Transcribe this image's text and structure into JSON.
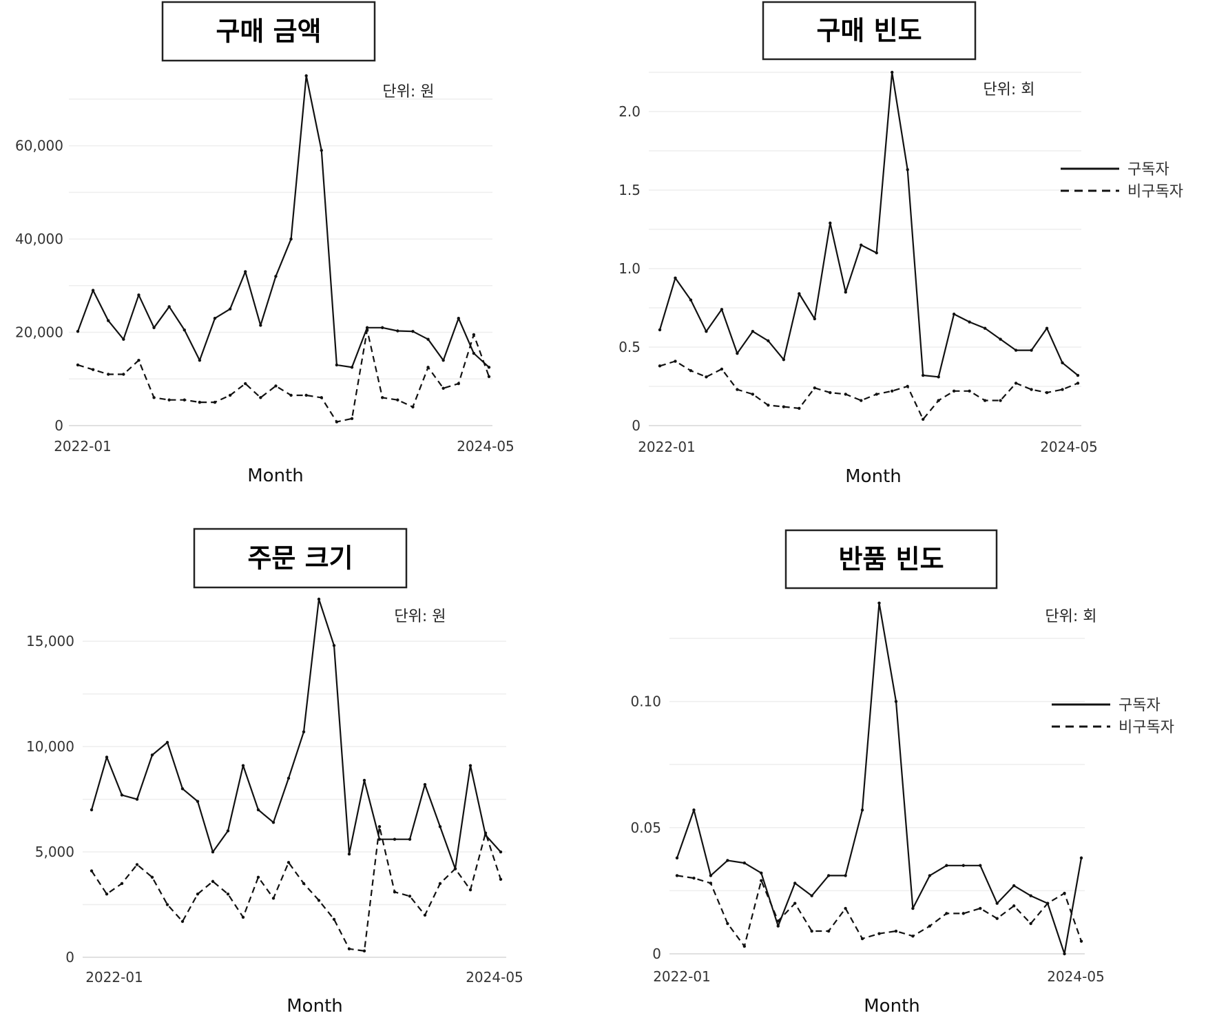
{
  "chart_data": [
    {
      "type": "line",
      "title": "구매 금액",
      "unit_label": "단위: 원",
      "xlabel": "Month",
      "x_tick_labels": [
        "2022-01",
        "2024-05"
      ],
      "ylim": [
        0,
        75000
      ],
      "y_ticks": [
        0,
        20000,
        40000,
        60000
      ],
      "y_tick_labels": [
        "0",
        "20,000",
        "40,000",
        "60,000"
      ],
      "legend": null,
      "series": [
        {
          "name": "구독자",
          "style": "solid",
          "values": [
            20200,
            29000,
            22500,
            18500,
            28000,
            21000,
            25500,
            20500,
            14000,
            23000,
            25000,
            33000,
            21500,
            32000,
            40000,
            75000,
            59000,
            13000,
            12500,
            21000,
            21000,
            20300,
            20200,
            18500,
            14000,
            23000,
            15500,
            12500
          ]
        },
        {
          "name": "비구독자",
          "style": "dashed",
          "values": [
            13000,
            12000,
            11000,
            11000,
            14000,
            6000,
            5500,
            5500,
            5000,
            5000,
            6500,
            9000,
            6000,
            8500,
            6500,
            6500,
            6000,
            800,
            1500,
            20500,
            6000,
            5500,
            4000,
            12500,
            8000,
            9000,
            19500,
            10500
          ]
        }
      ]
    },
    {
      "type": "line",
      "title": "구매 빈도",
      "unit_label": "단위: 회",
      "xlabel": "Month",
      "x_tick_labels": [
        "2022-01",
        "2024-05"
      ],
      "ylim": [
        0,
        2.25
      ],
      "y_ticks": [
        0,
        0.5,
        1.0,
        1.5,
        2.0
      ],
      "y_tick_labels": [
        "0",
        "0.5",
        "1.0",
        "1.5",
        "2.0"
      ],
      "legend": [
        "구독자",
        "비구독자"
      ],
      "series": [
        {
          "name": "구독자",
          "style": "solid",
          "values": [
            0.61,
            0.94,
            0.8,
            0.6,
            0.74,
            0.46,
            0.6,
            0.54,
            0.42,
            0.84,
            0.68,
            1.29,
            0.85,
            1.15,
            1.1,
            2.25,
            1.63,
            0.32,
            0.31,
            0.71,
            0.66,
            0.62,
            0.55,
            0.48,
            0.48,
            0.62,
            0.4,
            0.32
          ]
        },
        {
          "name": "비구독자",
          "style": "dashed",
          "values": [
            0.38,
            0.41,
            0.35,
            0.31,
            0.36,
            0.23,
            0.2,
            0.13,
            0.12,
            0.11,
            0.24,
            0.21,
            0.2,
            0.16,
            0.2,
            0.22,
            0.25,
            0.04,
            0.16,
            0.22,
            0.22,
            0.16,
            0.16,
            0.27,
            0.23,
            0.21,
            0.23,
            0.27
          ]
        }
      ]
    },
    {
      "type": "line",
      "title": "주문 크기",
      "unit_label": "단위: 원",
      "xlabel": "Month",
      "x_tick_labels": [
        "2022-01",
        "2024-05"
      ],
      "ylim": [
        0,
        17000
      ],
      "y_ticks": [
        0,
        5000,
        10000,
        15000
      ],
      "y_tick_labels": [
        "0",
        "5,000",
        "10,000",
        "15,000"
      ],
      "legend": null,
      "series": [
        {
          "name": "구독자",
          "style": "solid",
          "values": [
            7000,
            9500,
            7700,
            7500,
            9600,
            10200,
            8000,
            7400,
            5000,
            6000,
            9100,
            7000,
            6400,
            8500,
            10700,
            17000,
            14800,
            4900,
            8400,
            5600,
            5600,
            5600,
            8200,
            6200,
            4200,
            9100,
            5800,
            5000
          ]
        },
        {
          "name": "비구독자",
          "style": "dashed",
          "values": [
            4100,
            3000,
            3500,
            4400,
            3800,
            2500,
            1700,
            3000,
            3600,
            3000,
            1900,
            3800,
            2800,
            4500,
            3500,
            2700,
            1800,
            400,
            300,
            6200,
            3100,
            2900,
            2000,
            3500,
            4200,
            3200,
            5900,
            3700
          ]
        }
      ]
    },
    {
      "type": "line",
      "title": "반품 빈도",
      "unit_label": "단위: 회",
      "xlabel": "Month",
      "x_tick_labels": [
        "2022-01",
        "2024-05"
      ],
      "ylim": [
        0,
        0.14
      ],
      "y_ticks": [
        0,
        0.05,
        0.1
      ],
      "y_tick_labels": [
        "0",
        "0.05",
        "0.10"
      ],
      "legend": [
        "구독자",
        "비구독자"
      ],
      "series": [
        {
          "name": "구독자",
          "style": "solid",
          "values": [
            0.038,
            0.057,
            0.031,
            0.037,
            0.036,
            0.032,
            0.011,
            0.028,
            0.023,
            0.031,
            0.031,
            0.057,
            0.139,
            0.1,
            0.018,
            0.031,
            0.035,
            0.035,
            0.035,
            0.02,
            0.027,
            0.023,
            0.02,
            0.0,
            0.038
          ]
        },
        {
          "name": "비구독자",
          "style": "dashed",
          "values": [
            0.031,
            0.03,
            0.028,
            0.012,
            0.003,
            0.029,
            0.013,
            0.02,
            0.009,
            0.009,
            0.018,
            0.006,
            0.008,
            0.009,
            0.007,
            0.011,
            0.016,
            0.016,
            0.018,
            0.014,
            0.019,
            0.012,
            0.02,
            0.024,
            0.005
          ]
        }
      ]
    }
  ]
}
